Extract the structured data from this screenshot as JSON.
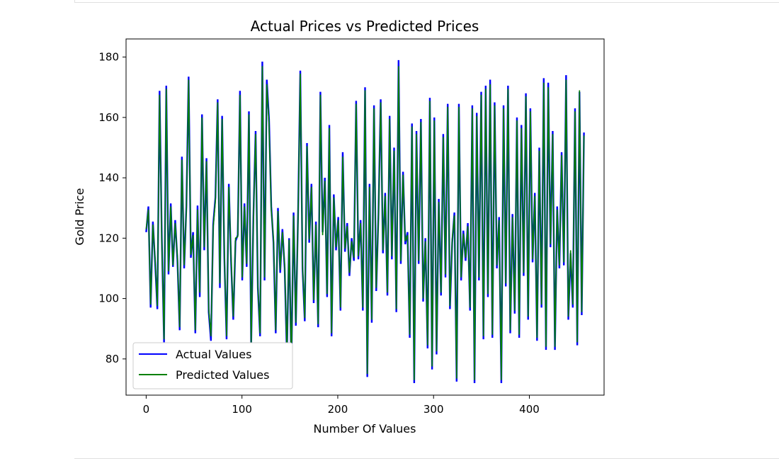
{
  "chart_data": {
    "type": "line",
    "title": "Actual Prices vs Predicted Prices",
    "xlabel": "Number Of Values",
    "ylabel": "Gold Price",
    "xlim": [
      -21,
      478
    ],
    "ylim": [
      68,
      186
    ],
    "x_ticks": [
      0,
      100,
      200,
      300,
      400
    ],
    "y_ticks": [
      80,
      100,
      120,
      140,
      160,
      180
    ],
    "grid": false,
    "legend_position": "lower-left",
    "series": [
      {
        "name": "Actual Values",
        "color": "#0000ff",
        "values": [
          122.0,
          130.5,
          97.0,
          125.5,
          112.0,
          96.5,
          168.8,
          120.0,
          85.5,
          170.5,
          108.0,
          131.5,
          110.5,
          126.0,
          112.5,
          89.5,
          147.0,
          110.0,
          130.5,
          173.5,
          113.5,
          122.0,
          88.5,
          130.8,
          100.5,
          161.0,
          116.0,
          146.5,
          95.5,
          86.0,
          124.5,
          133.5,
          166.0,
          103.5,
          160.5,
          113.5,
          86.5,
          138.0,
          112.5,
          93.0,
          119.0,
          121.0,
          168.8,
          106.0,
          131.5,
          110.5,
          162.0,
          84.0,
          127.0,
          155.5,
          103.5,
          87.5,
          178.5,
          106.0,
          172.5,
          159.5,
          130.5,
          118.5,
          88.5,
          130.0,
          108.5,
          123.0,
          110.0,
          81.0,
          120.0,
          77.5,
          128.5,
          91.0,
          127.5,
          175.5,
          110.0,
          92.5,
          151.5,
          118.5,
          138.0,
          98.5,
          125.5,
          90.5,
          168.5,
          122.0,
          140.0,
          100.5,
          157.5,
          87.5,
          134.5,
          116.0,
          127.0,
          96.0,
          148.5,
          115.5,
          125.0,
          107.5,
          120.0,
          112.5,
          165.5,
          113.0,
          126.0,
          96.0,
          170.0,
          74.0,
          138.0,
          92.0,
          164.0,
          102.5,
          128.0,
          166.0,
          115.0,
          135.0,
          101.0,
          160.5,
          113.0,
          150.0,
          95.5,
          179.0,
          111.5,
          142.0,
          118.0,
          122.0,
          87.0,
          158.0,
          72.0,
          155.5,
          111.5,
          159.5,
          99.0,
          120.0,
          83.5,
          166.5,
          76.5,
          160.0,
          81.5,
          133.0,
          101.0,
          154.5,
          107.0,
          164.5,
          96.5,
          118.5,
          128.5,
          72.5,
          164.5,
          106.0,
          122.5,
          112.5,
          125.0,
          96.0,
          164.0,
          72.0,
          161.5,
          106.0,
          168.5,
          86.5,
          170.5,
          100.5,
          172.5,
          87.0,
          165.0,
          110.0,
          127.0,
          72.0,
          164.0,
          104.0,
          170.5,
          88.5,
          128.0,
          95.0,
          160.0,
          87.0,
          157.5,
          107.5,
          168.0,
          93.0,
          163.0,
          112.0,
          135.0,
          86.0,
          150.0,
          97.0,
          173.0,
          83.0,
          171.5,
          117.0,
          155.5,
          83.0,
          130.5,
          110.0,
          148.5,
          111.0,
          174.0,
          93.0,
          115.0,
          97.0,
          163.0,
          84.5,
          168.5,
          94.5,
          155.0
        ]
      },
      {
        "name": "Predicted Values",
        "color": "#008000",
        "values": [
          123.0,
          129.5,
          98.0,
          124.5,
          113.0,
          97.5,
          167.5,
          119.0,
          86.5,
          169.5,
          109.0,
          130.5,
          111.0,
          125.0,
          113.5,
          90.5,
          146.0,
          111.0,
          129.5,
          172.5,
          114.5,
          121.0,
          89.5,
          129.5,
          102.0,
          160.0,
          117.0,
          145.5,
          96.5,
          87.5,
          123.5,
          132.5,
          165.0,
          105.0,
          159.5,
          114.5,
          87.5,
          137.0,
          113.5,
          94.0,
          120.0,
          120.5,
          167.5,
          107.0,
          130.5,
          111.5,
          161.0,
          85.0,
          126.0,
          154.5,
          104.5,
          88.5,
          177.0,
          107.0,
          171.0,
          158.0,
          129.5,
          119.5,
          89.5,
          129.0,
          109.5,
          122.0,
          111.0,
          82.5,
          119.5,
          78.5,
          127.5,
          92.0,
          126.5,
          174.5,
          111.0,
          93.5,
          150.5,
          119.5,
          137.0,
          99.5,
          124.5,
          91.5,
          167.5,
          121.0,
          139.0,
          101.5,
          156.5,
          88.5,
          133.5,
          117.0,
          126.0,
          97.0,
          147.0,
          116.5,
          124.0,
          108.5,
          119.0,
          113.5,
          164.5,
          114.0,
          125.0,
          97.0,
          169.0,
          75.0,
          137.0,
          93.0,
          163.0,
          103.5,
          127.0,
          165.0,
          116.0,
          134.0,
          102.0,
          159.5,
          114.0,
          149.0,
          96.5,
          177.0,
          112.5,
          141.0,
          119.0,
          121.0,
          88.0,
          157.0,
          73.0,
          154.5,
          112.5,
          158.5,
          100.0,
          119.0,
          84.5,
          165.5,
          77.5,
          159.0,
          82.5,
          132.0,
          102.0,
          153.5,
          108.0,
          163.5,
          97.5,
          119.5,
          127.5,
          73.5,
          163.5,
          107.0,
          121.5,
          113.5,
          124.0,
          97.0,
          163.0,
          73.0,
          160.5,
          107.0,
          167.5,
          87.5,
          169.5,
          101.5,
          171.0,
          88.0,
          164.0,
          111.0,
          126.0,
          73.0,
          163.0,
          105.0,
          169.5,
          89.5,
          127.0,
          96.0,
          159.0,
          88.0,
          156.5,
          108.5,
          167.0,
          94.0,
          162.0,
          113.0,
          134.0,
          87.0,
          149.0,
          98.0,
          171.5,
          84.0,
          170.0,
          118.0,
          154.5,
          84.0,
          129.5,
          111.0,
          147.5,
          112.0,
          172.5,
          94.0,
          116.0,
          98.0,
          162.0,
          85.5,
          169.0,
          95.5,
          154.0
        ]
      }
    ]
  }
}
